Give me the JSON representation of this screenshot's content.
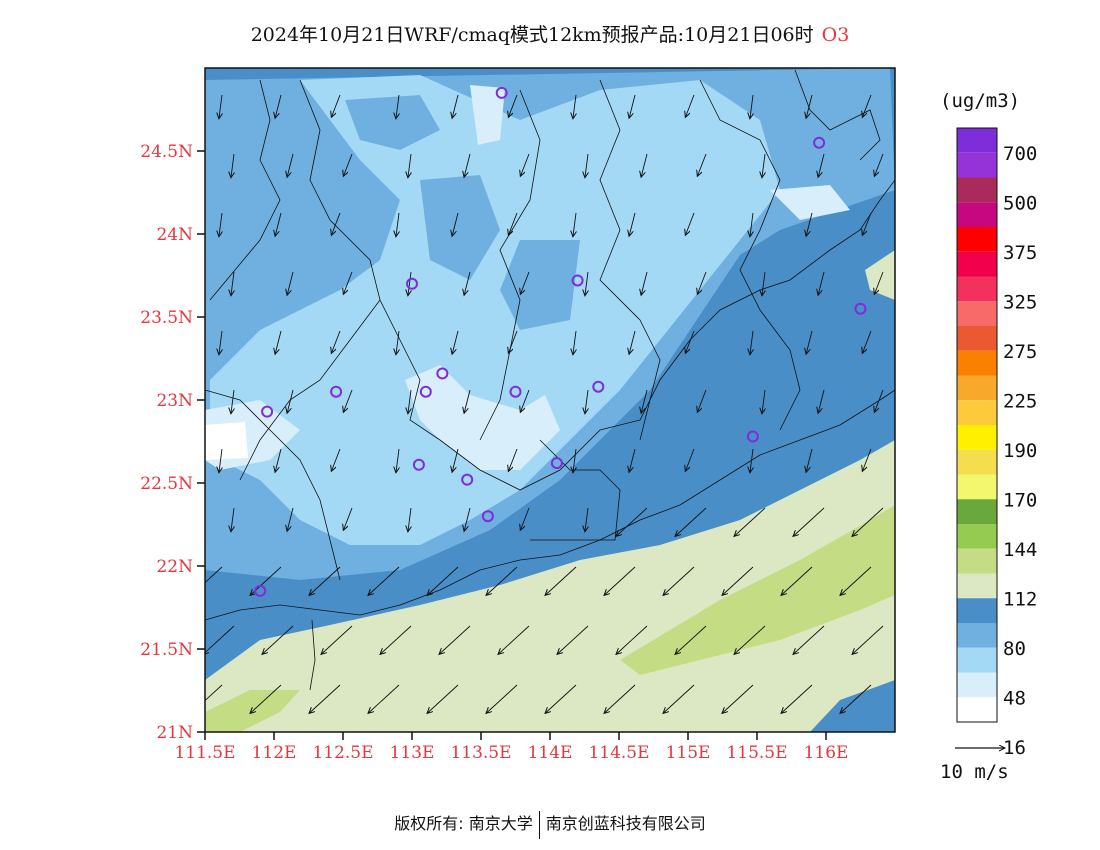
{
  "title": {
    "text": "2024年10月21日WRF/cmaq模式12km预报产品:10月21日06时",
    "pollutant": "O3"
  },
  "map": {
    "lat_labels": [
      "24.5N",
      "24N",
      "23.5N",
      "23N",
      "22.5N",
      "22N",
      "21.5N",
      "21N"
    ],
    "lon_labels": [
      "111.5E",
      "112E",
      "112.5E",
      "113E",
      "113.5E",
      "114E",
      "114.5E",
      "115E",
      "115.5E",
      "116E"
    ],
    "lon_range": [
      111.5,
      116.5
    ],
    "lat_range": [
      21.0,
      25.0
    ],
    "stations": [
      [
        113.65,
        24.85
      ],
      [
        115.95,
        24.55
      ],
      [
        113.0,
        23.7
      ],
      [
        114.2,
        23.72
      ],
      [
        116.25,
        23.55
      ],
      [
        113.22,
        23.16
      ],
      [
        111.95,
        22.93
      ],
      [
        112.45,
        23.05
      ],
      [
        113.1,
        23.05
      ],
      [
        113.75,
        23.05
      ],
      [
        114.35,
        23.08
      ],
      [
        115.47,
        22.78
      ],
      [
        113.05,
        22.61
      ],
      [
        113.4,
        22.52
      ],
      [
        114.05,
        22.62
      ],
      [
        113.55,
        22.3
      ],
      [
        111.9,
        21.85
      ]
    ]
  },
  "colorbar": {
    "unit": "(ug/m3)",
    "colors": [
      "#ffffff",
      "#d8eefa",
      "#a4d9f5",
      "#6fb0e0",
      "#4a8ec8",
      "#dce8c3",
      "#c4dd85",
      "#96cb52",
      "#6aa83c",
      "#f3f76d",
      "#f5de4e",
      "#fff000",
      "#fcca3b",
      "#f8a92c",
      "#fa8100",
      "#ea5a30",
      "#f86a6a",
      "#f2325d",
      "#f3004c",
      "#ff0000",
      "#c6077f",
      "#aa2a5c",
      "#9532d8",
      "#7d2ed8"
    ],
    "labels": [
      "16",
      "48",
      "80",
      "112",
      "144",
      "170",
      "190",
      "225",
      "275",
      "325",
      "375",
      "500",
      "700"
    ]
  },
  "wind_legend": {
    "label": "10 m/s"
  },
  "copyright": {
    "left": "版权所有: 南京大学",
    "right": "南京创蓝科技有限公司"
  }
}
